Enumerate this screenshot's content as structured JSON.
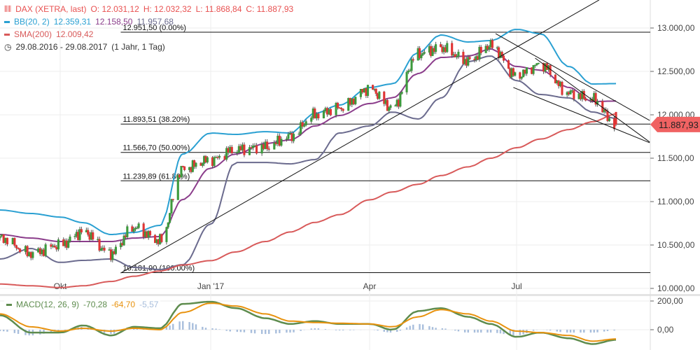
{
  "legend": {
    "instrument": "DAX (XETRA, last)",
    "ohlc": {
      "o": "O: 12.031,12",
      "h": "H: 12.032,32",
      "l": "L: 11.868,84",
      "c": "C: 11.887,93"
    },
    "bb": {
      "label": "BB(20, 2)",
      "upper": "12.359,31",
      "middle": "12.158,50",
      "lower": "11.957,68"
    },
    "sma": {
      "label": "SMA(200)",
      "value": "12.009,42"
    },
    "range": "29.08.2016 - 29.08.2017",
    "interval": "(1 Jahr, 1 Tag)"
  },
  "macd_legend": {
    "label": "MACD(12, 26, 9)",
    "macd": "-70,28",
    "signal": "-64,70",
    "hist": "-5,57"
  },
  "last_price_tag": "11.887,93",
  "colors": {
    "up": "#3c9a3c",
    "down": "#e03535",
    "bb_upper": "#2aa0d2",
    "bb_middle": "#8b3d8b",
    "bb_lower": "#6b6b8e",
    "sma": "#d85a5a",
    "macd": "#5e8c4e",
    "signal": "#e8920e",
    "hist": "#a8bedc",
    "legend_price": "#e85050",
    "tag": "#f06262"
  },
  "chart_data": [
    {
      "type": "candlestick",
      "title": "",
      "x_ticks": [
        "Okt",
        "Jan '17",
        "Apr",
        "Jul"
      ],
      "y_ticks": [
        "10.000,00",
        "10.500,00",
        "11.000,00",
        "11.500,00",
        "12.000,00",
        "12.500,00",
        "13.000,00"
      ],
      "ylim": [
        10000,
        13000
      ],
      "xlim": [
        "2016-08-29",
        "2017-09-18"
      ],
      "grid": true,
      "dates": [
        "2016-08-29",
        "2016-09-15",
        "2016-10-01",
        "2016-10-15",
        "2016-11-01",
        "2016-11-15",
        "2016-12-01",
        "2016-12-15",
        "2017-01-01",
        "2017-01-15",
        "2017-02-01",
        "2017-02-15",
        "2017-03-01",
        "2017-03-15",
        "2017-04-01",
        "2017-04-15",
        "2017-05-01",
        "2017-05-15",
        "2017-06-01",
        "2017-06-15",
        "2017-07-01",
        "2017-07-15",
        "2017-08-01",
        "2017-08-15",
        "2017-08-29"
      ],
      "close": [
        10580,
        10400,
        10500,
        10650,
        10400,
        10700,
        10550,
        11380,
        11480,
        11600,
        11630,
        11750,
        12000,
        12080,
        12300,
        12080,
        12700,
        12770,
        12620,
        12800,
        12450,
        12580,
        12250,
        12180,
        11887.93
      ],
      "last_candle": {
        "open": 12031.12,
        "high": 12032.32,
        "low": 11868.84,
        "close": 11887.93
      },
      "series": [
        {
          "name": "BB(20, 2)",
          "key": "bb_upper",
          "values": [
            10903,
            10863,
            10822,
            10758,
            10621,
            10645,
            10726,
            11548,
            11790,
            11774,
            11806,
            11790,
            12016,
            12113,
            12315,
            12355,
            12718,
            12919,
            12839,
            12855,
            12984,
            12935,
            12556,
            12355,
            12359.31
          ]
        },
        {
          "key": "bb_middle",
          "values": [
            10621,
            10580,
            10540,
            10540,
            10540,
            10580,
            10597,
            11024,
            11387,
            11548,
            11669,
            11710,
            11871,
            11992,
            12129,
            12194,
            12476,
            12661,
            12677,
            12758,
            12556,
            12516,
            12315,
            12153,
            12158.5
          ]
        },
        {
          "key": "bb_lower",
          "values": [
            10339,
            10460,
            10299,
            10323,
            10339,
            10242,
            10218,
            10274,
            10742,
            11451,
            11451,
            11435,
            11484,
            11790,
            11871,
            12032,
            11952,
            12194,
            12613,
            12677,
            12395,
            12234,
            12194,
            12032,
            11957.68
          ]
        },
        {
          "name": "SMA(200)",
          "key": "sma",
          "values": [
            10050,
            10030,
            10010,
            10030,
            10080,
            10140,
            10200,
            10270,
            10320,
            10420,
            10540,
            10650,
            10760,
            10850,
            11020,
            11110,
            11200,
            11300,
            11400,
            11500,
            11620,
            11720,
            11830,
            11920,
            12009.42
          ]
        }
      ],
      "fibonacci": [
        {
          "label": "12.951,50 (0.00%)",
          "value": 12951.5
        },
        {
          "label": "11.893,51 (38.20%)",
          "value": 11893.51
        },
        {
          "label": "11.566,70 (50.00%)",
          "value": 11566.7
        },
        {
          "label": "11.239,89 (61.80%)",
          "value": 11239.89
        },
        {
          "label": "10.181,90 (100.00%)",
          "value": 10181.9
        }
      ],
      "fib_start": "2016-11-07",
      "trend_lines": [
        {
          "from": [
            "2016-11-07",
            10177
          ],
          "to": [
            "2017-08-19",
            13323
          ]
        },
        {
          "from": [
            "2017-06-18",
            12935
          ],
          "to": [
            "2017-09-18",
            11935
          ]
        },
        {
          "from": [
            "2017-07-12",
            12653
          ],
          "to": [
            "2017-09-18",
            11686
          ]
        },
        {
          "from": [
            "2017-06-29",
            12315
          ],
          "to": [
            "2017-09-18",
            11678
          ]
        }
      ]
    },
    {
      "type": "line",
      "title": "",
      "y_ticks": [
        "200,00",
        "0,00"
      ],
      "ylim": [
        -140,
        200
      ],
      "series": [
        {
          "name": "MACD(12, 26, 9)",
          "key": "macd",
          "values": [
            100,
            -20,
            -20,
            30,
            -40,
            20,
            10,
            180,
            195,
            150,
            80,
            40,
            60,
            40,
            40,
            0,
            130,
            150,
            90,
            40,
            -50,
            -20,
            -60,
            -100,
            -70.28
          ]
        },
        {
          "key": "signal",
          "values": [
            110,
            20,
            -10,
            10,
            -10,
            10,
            0,
            120,
            185,
            165,
            110,
            60,
            50,
            45,
            40,
            20,
            90,
            140,
            110,
            60,
            -10,
            -20,
            -40,
            -80,
            -64.7
          ]
        }
      ],
      "histogram": "macd minus signal"
    }
  ]
}
